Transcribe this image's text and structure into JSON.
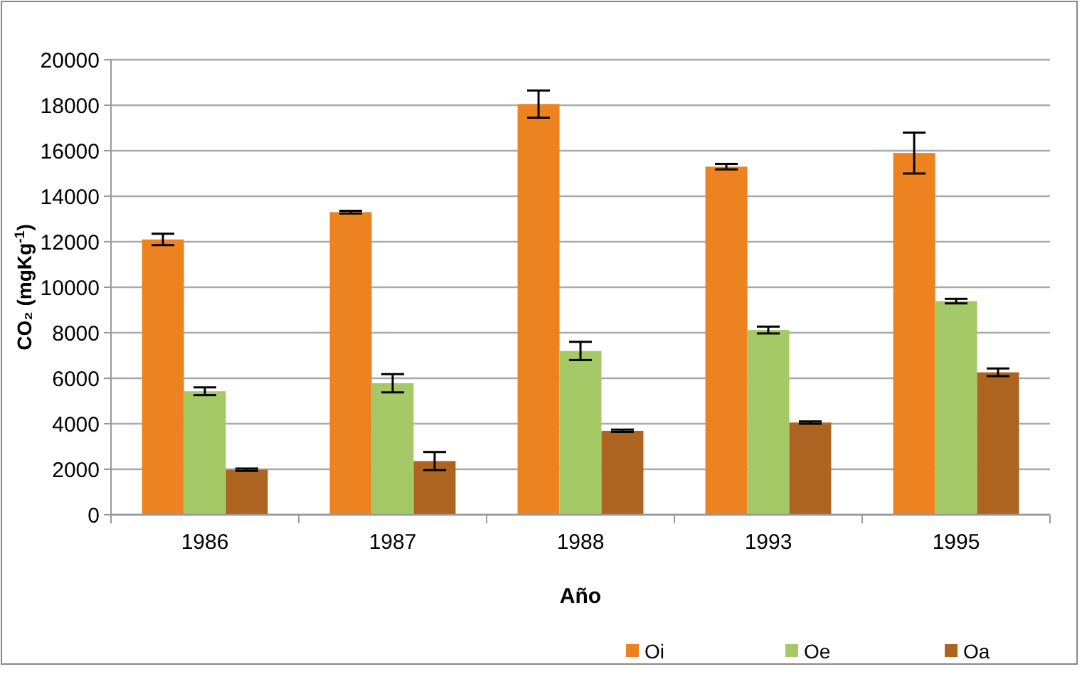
{
  "chart_data": {
    "type": "bar",
    "xlabel": "Año",
    "ylabel": "CO₂ (mgKg$^{-1}$)",
    "categories": [
      "1986",
      "1987",
      "1988",
      "1993",
      "1995"
    ],
    "series": [
      {
        "name": "Oi",
        "color": "#ed8220",
        "values": [
          12100,
          13300,
          18050,
          15300,
          15900
        ],
        "errors": [
          250,
          60,
          600,
          120,
          900
        ]
      },
      {
        "name": "Oe",
        "color": "#a5c966",
        "values": [
          5430,
          5780,
          7200,
          8120,
          9390
        ],
        "errors": [
          170,
          400,
          400,
          150,
          100
        ]
      },
      {
        "name": "Oa",
        "color": "#ad6420",
        "values": [
          1980,
          2360,
          3690,
          4050,
          6260
        ],
        "errors": [
          50,
          400,
          50,
          50,
          170
        ]
      }
    ],
    "ylim": [
      0,
      20000
    ],
    "yticks": [
      0,
      2000,
      4000,
      6000,
      8000,
      10000,
      12000,
      14000,
      16000,
      18000,
      20000
    ],
    "grid": "y",
    "legend": "bottom right"
  }
}
